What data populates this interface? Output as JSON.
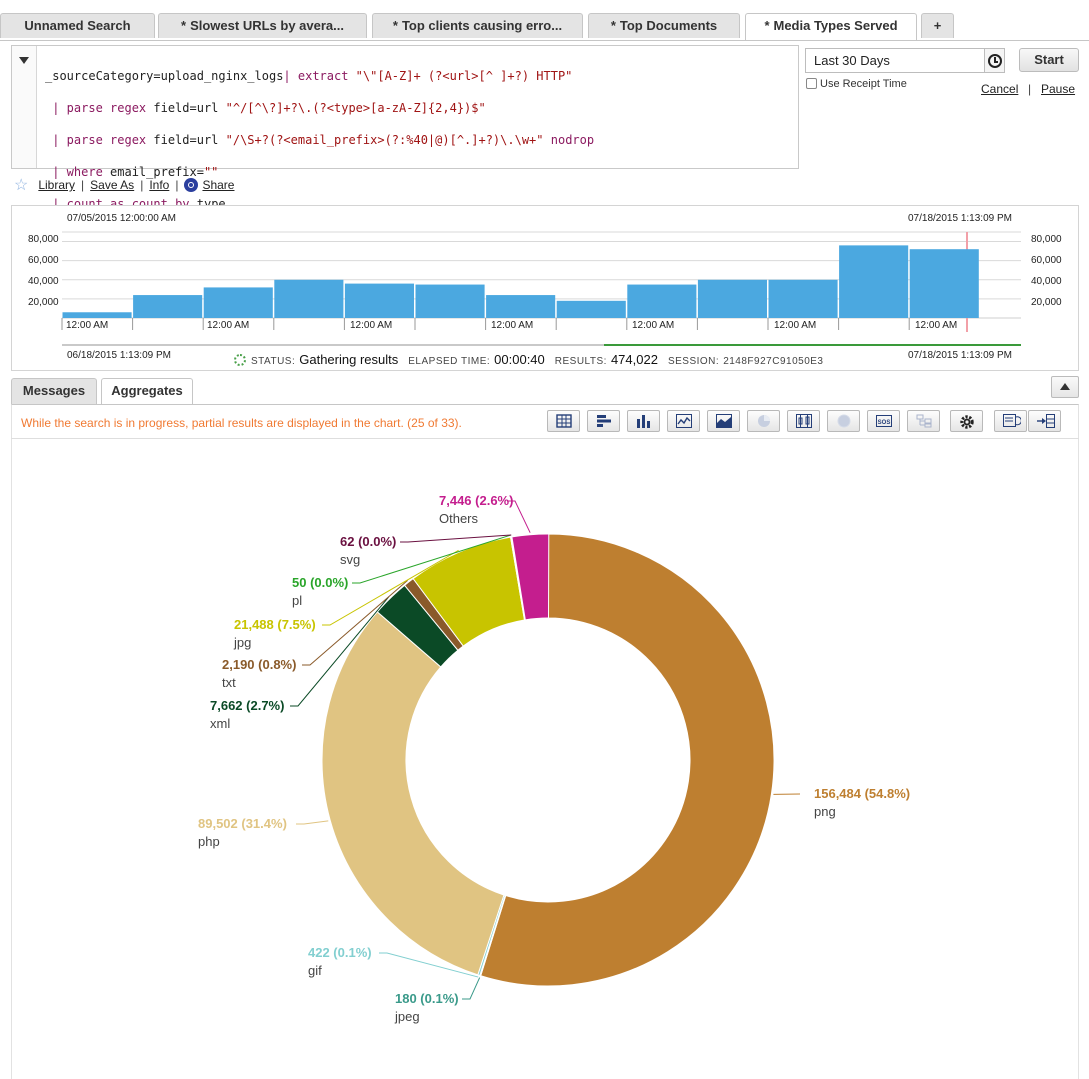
{
  "tabs": [
    {
      "label": "Unnamed Search",
      "star": ""
    },
    {
      "label": "Slowest URLs by avera...",
      "star": "*"
    },
    {
      "label": "Top clients causing erro...",
      "star": "*"
    },
    {
      "label": "Top Documents",
      "star": "*"
    },
    {
      "label": "Media Types Served",
      "star": "*"
    },
    {
      "label": "+",
      "star": ""
    }
  ],
  "query": {
    "line1_a": "_sourceCategory=upload_nginx_logs",
    "line1_b": "| extract ",
    "line1_c": "\"\\\"[A-Z]+ (?<url>[^ ]+?) HTTP\"",
    "line2_a": " | parse regex ",
    "line2_b": "field=url ",
    "line2_c": "\"^/[^\\?]+?\\.(?<type>[a-zA-Z]{2,4})$\"",
    "line3_a": " | parse regex ",
    "line3_b": "field=url ",
    "line3_c": "\"/\\S+?(?<email_prefix>(?:%40|@)[^.]+?)\\.\\w+\"",
    "line3_d": " nodrop",
    "line4_a": " | where ",
    "line4_b": "email_prefix=",
    "line4_c": "\"\"",
    "line5_a": " | count ",
    "line5_b": "as count ",
    "line5_c": "by ",
    "line5_d": "type"
  },
  "time_range": "Last 30 Days",
  "start_label": "Start",
  "receipt_label": "Use Receipt Time",
  "cancel_label": "Cancel",
  "pause_label": "Pause",
  "library": {
    "library_label": "Library",
    "save_as_label": "Save As",
    "info_label": "Info",
    "share_label": "Share"
  },
  "histogram": {
    "top_left_date": "07/05/2015 12:00:00 AM",
    "top_right_date": "07/18/2015 1:13:09 PM",
    "y_ticks": [
      "80,000",
      "60,000",
      "40,000",
      "20,000"
    ],
    "x_ticks": [
      "12:00 AM",
      "12:00 AM",
      "12:00 AM",
      "12:00 AM",
      "12:00 AM",
      "12:00 AM",
      "12:00 AM"
    ],
    "values": [
      6000,
      24000,
      32000,
      40000,
      36000,
      35000,
      24000,
      18000,
      35000,
      40000,
      40000,
      76000,
      72000
    ],
    "y_max": 90000,
    "bar_color": "#4ba8e0",
    "range_start": "06/18/2015 1:13:09 PM",
    "range_end": "07/18/2015 1:13:09 PM"
  },
  "status": {
    "status_key": "STATUS:",
    "status_val": "Gathering results",
    "elapsed_key": "ELAPSED TIME:",
    "elapsed_val": "00:00:40",
    "results_key": "RESULTS:",
    "results_val": "474,022",
    "session_key": "SESSION:",
    "session_val": "2148F927C91050E3"
  },
  "sub_tabs": {
    "messages": "Messages",
    "aggregates": "Aggregates"
  },
  "progress_message": "While the search is in progress, partial results are displayed in the chart. (25 of 33).",
  "toolbar_icons": [
    "table-icon",
    "bar-chart-icon",
    "column-chart-icon",
    "line-chart-icon",
    "area-chart-icon",
    "pie-chart-icon",
    "box-plot-icon",
    "map-icon",
    "sos-icon",
    "tree-icon",
    "gear-icon",
    "export-icon",
    "add-to-dashboard-icon"
  ],
  "chart_data": {
    "type": "pie",
    "donut": true,
    "slices": [
      {
        "name": "png",
        "value": 156484,
        "pct": "54.8%",
        "label": "156,484 (54.8%)",
        "color": "#be7f30"
      },
      {
        "name": "jpeg",
        "value": 180,
        "pct": "0.1%",
        "label": "180 (0.1%)",
        "color": "#3a9a8a"
      },
      {
        "name": "gif",
        "value": 422,
        "pct": "0.1%",
        "label": "422 (0.1%)",
        "color": "#82cfd0"
      },
      {
        "name": "php",
        "value": 89502,
        "pct": "31.4%",
        "label": "89,502 (31.4%)",
        "color": "#e0c482"
      },
      {
        "name": "xml",
        "value": 7662,
        "pct": "2.7%",
        "label": "7,662 (2.7%)",
        "color": "#0b4a26"
      },
      {
        "name": "txt",
        "value": 2190,
        "pct": "0.8%",
        "label": "2,190 (0.8%)",
        "color": "#8a5a2a"
      },
      {
        "name": "jpg",
        "value": 21488,
        "pct": "7.5%",
        "label": "21,488 (7.5%)",
        "color": "#c8c400"
      },
      {
        "name": "pl",
        "value": 50,
        "pct": "0.0%",
        "label": "50 (0.0%)",
        "color": "#2aa52a"
      },
      {
        "name": "svg",
        "value": 62,
        "pct": "0.0%",
        "label": "62 (0.0%)",
        "color": "#6a1040"
      },
      {
        "name": "Others",
        "value": 7446,
        "pct": "2.6%",
        "label": "7,446 (2.6%)",
        "color": "#c41e8e"
      }
    ]
  }
}
